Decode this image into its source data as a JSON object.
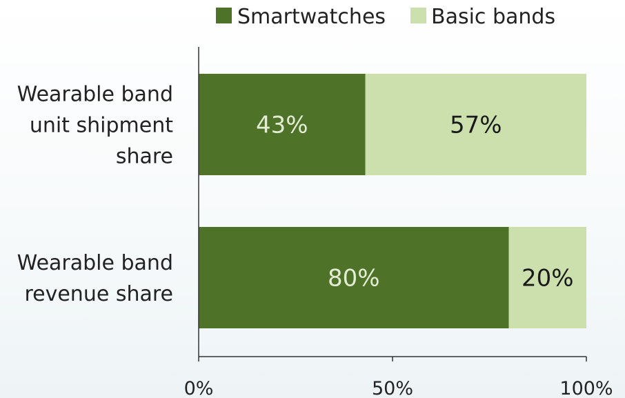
{
  "chart_data": {
    "type": "bar",
    "orientation": "horizontal",
    "stacked": true,
    "categories": [
      [
        "Wearable band",
        "unit shipment",
        "share"
      ],
      [
        "Wearable band",
        "revenue share"
      ]
    ],
    "series": [
      {
        "name": "Smartwatches",
        "values": [
          43,
          80
        ],
        "labels": [
          "43%",
          "80%"
        ],
        "color": "#4e7228",
        "label_color": "#e3edd3"
      },
      {
        "name": "Basic bands",
        "values": [
          57,
          20
        ],
        "labels": [
          "57%",
          "20%"
        ],
        "color": "#cce0ad",
        "label_color": "#1a1a1a"
      }
    ],
    "xlim": [
      0,
      100
    ],
    "xticks": [
      {
        "value": 0,
        "label": "0%"
      },
      {
        "value": 50,
        "label": "50%"
      },
      {
        "value": 100,
        "label": "100%"
      }
    ],
    "grid": false,
    "legend_position": "top"
  }
}
